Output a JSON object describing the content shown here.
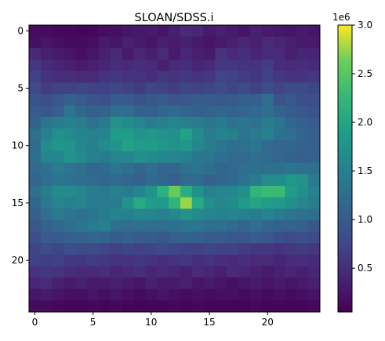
{
  "chart_data": {
    "type": "heatmap",
    "title": "SLOAN/SDSS.i",
    "xlabel": "",
    "ylabel": "",
    "rows": 25,
    "cols": 25,
    "x_ticks": [
      0,
      5,
      10,
      15,
      20
    ],
    "y_ticks": [
      0,
      5,
      10,
      15,
      20
    ],
    "colormap": "viridis",
    "colorbar": {
      "min": 50000,
      "max": 3000000,
      "ticks": [
        0.5,
        1.0,
        1.5,
        2.0,
        2.5,
        3.0
      ],
      "tick_labels": [
        "0.5",
        "1.0",
        "1.5",
        "2.0",
        "2.5",
        "3.0"
      ],
      "offset_label": "1e6"
    },
    "values_1e6": [
      [
        0.15,
        0.15,
        0.12,
        0.12,
        0.1,
        0.12,
        0.18,
        0.2,
        0.25,
        0.28,
        0.3,
        0.25,
        0.35,
        0.45,
        0.4,
        0.3,
        0.35,
        0.3,
        0.25,
        0.35,
        0.3,
        0.28,
        0.25,
        0.3,
        0.25
      ],
      [
        0.2,
        0.25,
        0.2,
        0.15,
        0.15,
        0.2,
        0.3,
        0.25,
        0.35,
        0.3,
        0.25,
        0.35,
        0.3,
        0.35,
        0.3,
        0.25,
        0.3,
        0.35,
        0.4,
        0.35,
        0.45,
        0.4,
        0.35,
        0.3,
        0.3
      ],
      [
        0.45,
        0.35,
        0.3,
        0.25,
        0.2,
        0.25,
        0.35,
        0.45,
        0.3,
        0.4,
        0.35,
        0.45,
        0.3,
        0.4,
        0.35,
        0.3,
        0.55,
        0.45,
        0.5,
        0.4,
        0.45,
        0.45,
        0.35,
        0.4,
        0.4
      ],
      [
        0.6,
        0.45,
        0.4,
        0.35,
        0.3,
        0.35,
        0.4,
        0.5,
        0.45,
        0.5,
        0.45,
        0.35,
        0.45,
        0.5,
        0.4,
        0.45,
        0.6,
        0.6,
        0.55,
        0.55,
        0.65,
        0.5,
        0.45,
        0.5,
        0.45
      ],
      [
        0.7,
        0.55,
        0.5,
        0.5,
        0.45,
        0.45,
        0.55,
        0.6,
        0.55,
        0.55,
        0.5,
        0.6,
        0.55,
        0.6,
        0.55,
        0.6,
        0.75,
        0.7,
        0.65,
        0.6,
        0.7,
        0.6,
        0.55,
        0.55,
        0.6
      ],
      [
        0.8,
        0.65,
        0.7,
        0.7,
        0.75,
        0.7,
        0.7,
        0.75,
        0.7,
        0.65,
        0.75,
        0.7,
        0.65,
        0.75,
        0.7,
        0.75,
        0.8,
        0.75,
        0.8,
        0.7,
        0.8,
        0.75,
        0.8,
        0.8,
        0.75
      ],
      [
        0.9,
        0.85,
        0.95,
        1.05,
        1.0,
        0.9,
        0.85,
        1.0,
        1.0,
        0.9,
        0.95,
        1.0,
        0.9,
        0.95,
        1.0,
        1.0,
        0.95,
        1.0,
        1.05,
        1.05,
        1.25,
        0.9,
        0.95,
        0.85,
        0.85
      ],
      [
        1.0,
        0.95,
        1.05,
        1.35,
        1.15,
        1.05,
        1.1,
        1.25,
        1.25,
        1.1,
        1.05,
        1.15,
        1.2,
        1.15,
        1.05,
        1.1,
        1.15,
        1.1,
        1.15,
        1.2,
        1.25,
        1.1,
        1.0,
        0.95,
        0.9
      ],
      [
        1.1,
        1.35,
        1.45,
        1.5,
        1.45,
        1.3,
        1.4,
        1.75,
        1.65,
        1.55,
        1.45,
        1.5,
        1.55,
        1.5,
        1.45,
        1.35,
        1.4,
        1.3,
        1.35,
        1.3,
        1.45,
        1.35,
        1.15,
        1.05,
        1.0
      ],
      [
        1.3,
        1.5,
        1.7,
        1.65,
        1.55,
        1.5,
        1.55,
        1.85,
        1.9,
        1.75,
        1.8,
        1.75,
        1.7,
        1.95,
        1.65,
        1.45,
        1.55,
        1.5,
        1.35,
        1.4,
        1.5,
        1.3,
        1.25,
        1.15,
        1.05
      ],
      [
        1.2,
        1.65,
        1.8,
        1.75,
        1.6,
        1.5,
        1.65,
        1.75,
        1.95,
        1.85,
        1.9,
        1.8,
        1.75,
        1.8,
        1.6,
        1.45,
        1.35,
        1.25,
        1.3,
        1.35,
        1.2,
        1.15,
        1.15,
        1.1,
        1.05
      ],
      [
        1.25,
        1.55,
        1.55,
        1.75,
        1.65,
        1.5,
        1.45,
        1.55,
        1.6,
        1.7,
        1.65,
        1.6,
        1.55,
        1.5,
        1.35,
        1.35,
        1.25,
        1.2,
        1.2,
        1.25,
        1.2,
        1.15,
        1.1,
        1.05,
        1.1
      ],
      [
        1.2,
        1.3,
        1.45,
        1.35,
        1.25,
        1.15,
        1.2,
        1.35,
        1.25,
        1.15,
        1.25,
        1.15,
        1.15,
        1.3,
        1.35,
        1.25,
        1.15,
        1.2,
        1.25,
        1.3,
        1.25,
        1.3,
        1.35,
        1.3,
        1.25
      ],
      [
        1.15,
        1.25,
        1.35,
        1.3,
        1.25,
        1.2,
        1.15,
        1.2,
        1.15,
        1.1,
        1.2,
        1.15,
        1.05,
        1.2,
        1.2,
        1.1,
        1.15,
        1.2,
        1.3,
        1.4,
        1.65,
        1.65,
        1.8,
        1.75,
        1.4
      ],
      [
        1.3,
        1.45,
        1.65,
        1.65,
        1.6,
        1.45,
        1.4,
        1.5,
        1.45,
        1.55,
        1.75,
        2.15,
        2.6,
        2.1,
        1.75,
        1.5,
        1.55,
        1.6,
        1.7,
        2.2,
        2.3,
        2.3,
        1.9,
        1.7,
        1.5
      ],
      [
        1.15,
        1.4,
        1.55,
        1.5,
        1.55,
        1.45,
        1.4,
        1.45,
        1.75,
        2.05,
        1.9,
        1.85,
        2.2,
        2.75,
        2.05,
        1.7,
        1.6,
        1.65,
        1.85,
        2.0,
        1.9,
        1.85,
        1.7,
        1.6,
        1.45
      ],
      [
        1.05,
        1.25,
        1.4,
        1.35,
        1.3,
        1.35,
        1.45,
        1.55,
        1.5,
        1.6,
        1.55,
        1.5,
        1.6,
        1.75,
        1.65,
        1.55,
        1.5,
        1.55,
        1.5,
        1.45,
        1.55,
        1.45,
        1.35,
        1.3,
        1.25
      ],
      [
        0.95,
        1.1,
        1.2,
        1.25,
        1.35,
        1.45,
        1.5,
        1.3,
        1.25,
        1.3,
        1.25,
        1.25,
        1.3,
        1.35,
        1.35,
        1.25,
        1.3,
        1.2,
        1.15,
        1.25,
        1.15,
        1.1,
        1.1,
        1.05,
        0.95
      ],
      [
        0.85,
        1.0,
        1.0,
        1.05,
        1.1,
        1.15,
        1.1,
        1.0,
        1.05,
        1.0,
        1.0,
        0.95,
        1.05,
        1.1,
        1.05,
        1.0,
        1.0,
        0.95,
        0.95,
        1.0,
        0.95,
        0.85,
        0.8,
        0.85,
        0.8
      ],
      [
        0.75,
        0.8,
        0.75,
        0.85,
        0.8,
        0.8,
        0.75,
        0.7,
        0.75,
        0.7,
        0.75,
        0.8,
        0.75,
        0.7,
        0.7,
        0.75,
        0.7,
        0.7,
        0.65,
        0.6,
        0.6,
        0.55,
        0.6,
        0.65,
        0.6
      ],
      [
        0.7,
        0.65,
        0.7,
        0.6,
        0.6,
        0.65,
        0.6,
        0.55,
        0.55,
        0.6,
        0.55,
        0.5,
        0.55,
        0.6,
        0.5,
        0.55,
        0.5,
        0.45,
        0.5,
        0.45,
        0.45,
        0.4,
        0.45,
        0.5,
        0.45
      ],
      [
        0.55,
        0.6,
        0.55,
        0.5,
        0.45,
        0.45,
        0.5,
        0.4,
        0.45,
        0.5,
        0.4,
        0.45,
        0.4,
        0.35,
        0.45,
        0.4,
        0.35,
        0.45,
        0.4,
        0.35,
        0.3,
        0.35,
        0.4,
        0.35,
        0.4
      ],
      [
        0.4,
        0.45,
        0.35,
        0.3,
        0.35,
        0.3,
        0.3,
        0.35,
        0.3,
        0.25,
        0.35,
        0.3,
        0.3,
        0.35,
        0.25,
        0.3,
        0.25,
        0.2,
        0.25,
        0.3,
        0.25,
        0.3,
        0.25,
        0.3,
        0.35
      ],
      [
        0.25,
        0.3,
        0.25,
        0.2,
        0.2,
        0.25,
        0.2,
        0.25,
        0.2,
        0.15,
        0.2,
        0.25,
        0.2,
        0.15,
        0.2,
        0.15,
        0.2,
        0.2,
        0.15,
        0.2,
        0.15,
        0.2,
        0.15,
        0.2,
        0.25
      ],
      [
        0.15,
        0.15,
        0.12,
        0.1,
        0.1,
        0.12,
        0.1,
        0.12,
        0.1,
        0.08,
        0.1,
        0.1,
        0.12,
        0.1,
        0.12,
        0.1,
        0.1,
        0.08,
        0.1,
        0.12,
        0.1,
        0.1,
        0.1,
        0.1,
        0.12
      ]
    ]
  }
}
